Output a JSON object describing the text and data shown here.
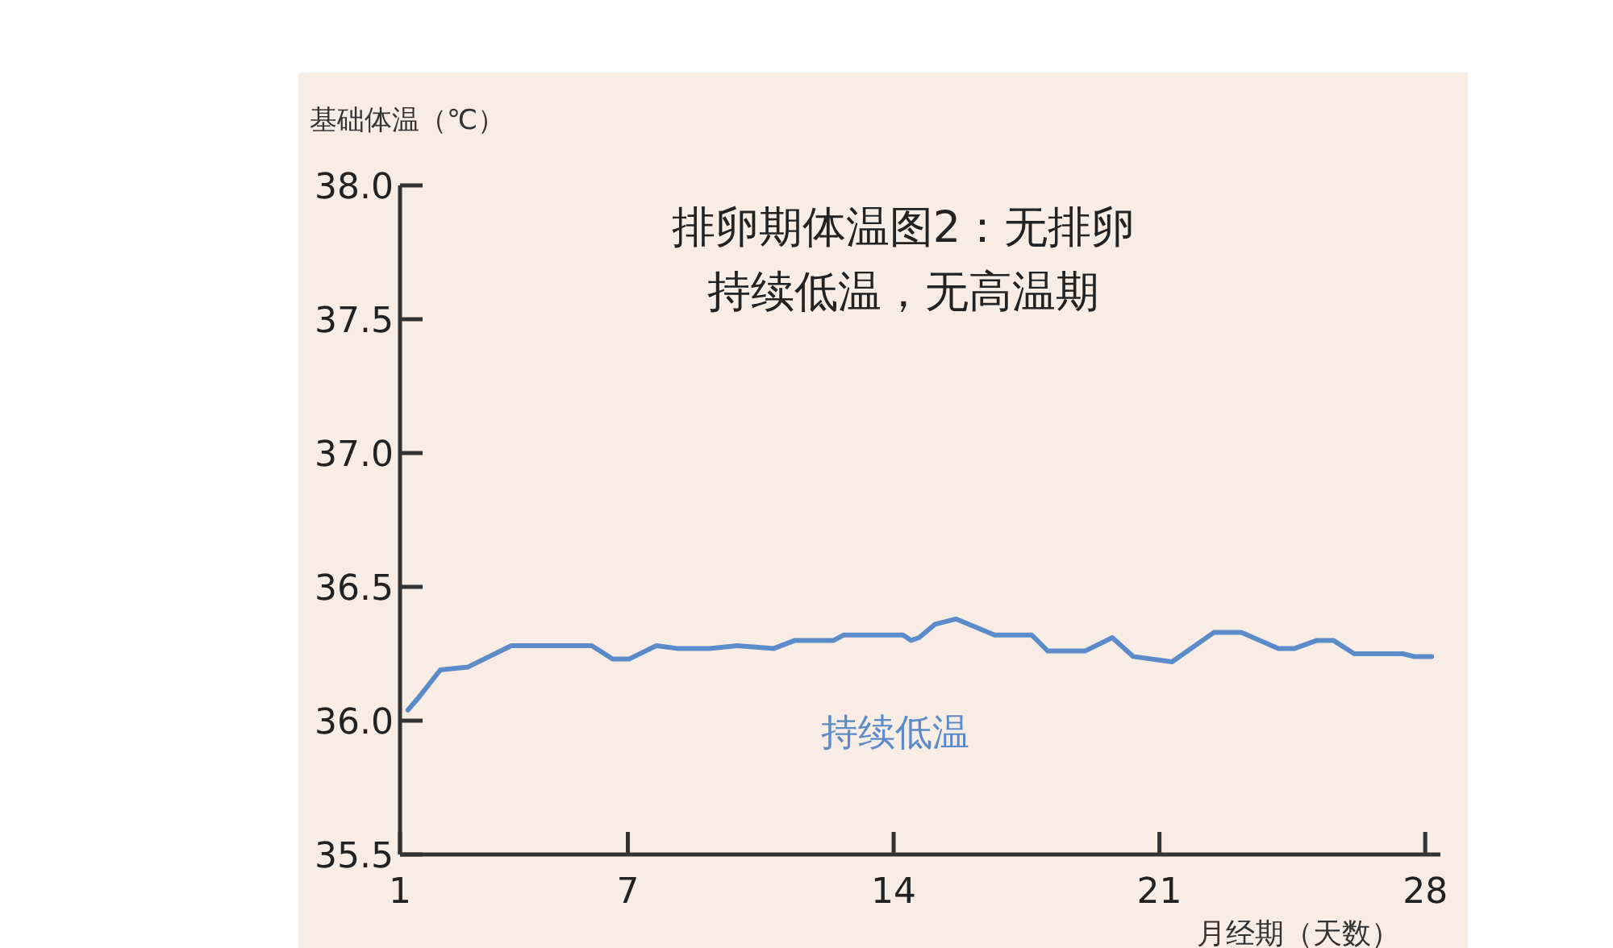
{
  "chart_data": {
    "type": "line",
    "title": "排卵期体温图2：无排卵",
    "subtitle": "持续低温，无高温期",
    "ylabel": "基础体温（℃）",
    "xlabel": "月经期（天数）",
    "x": [
      1.21,
      1.51,
      2.06,
      2.78,
      3.93,
      6.05,
      6.6,
      7.03,
      7.75,
      8.3,
      9.15,
      9.88,
      10.85,
      11.4,
      12.42,
      12.68,
      14.25,
      14.46,
      14.67,
      15.09,
      15.64,
      16.66,
      17.64,
      18.06,
      19.04,
      19.76,
      20.31,
      21.33,
      22.44,
      23.16,
      24.13,
      24.56,
      25.15,
      25.58,
      26.13,
      27.41,
      27.7,
      28.17
    ],
    "series": [
      {
        "color": "#5b8bc9",
        "values": [
          36.04,
          36.09,
          36.19,
          36.2,
          36.28,
          36.28,
          36.23,
          36.23,
          36.28,
          36.27,
          36.27,
          36.28,
          36.27,
          36.3,
          36.3,
          36.32,
          36.32,
          36.3,
          36.31,
          36.36,
          36.38,
          36.32,
          36.32,
          36.26,
          36.26,
          36.31,
          36.24,
          36.22,
          36.33,
          36.33,
          36.27,
          36.27,
          36.3,
          36.3,
          36.25,
          36.25,
          36.24,
          36.24
        ]
      }
    ],
    "xlim": [
      1,
      28.4
    ],
    "ylim": [
      35.5,
      38.0
    ],
    "xticks": [
      1,
      7,
      14,
      21,
      28
    ],
    "yticks": [
      {
        "value": 35.5,
        "label": "35.5"
      },
      {
        "value": 36.0,
        "label": "36.0"
      },
      {
        "value": 36.5,
        "label": "36.5"
      },
      {
        "value": 37.0,
        "label": "37.0"
      },
      {
        "value": 37.5,
        "label": "37.5"
      },
      {
        "value": 38.0,
        "label": "38.0"
      }
    ],
    "annotations": [
      "持续低温"
    ],
    "grid": false,
    "marker": "none",
    "line_style": "solid"
  }
}
